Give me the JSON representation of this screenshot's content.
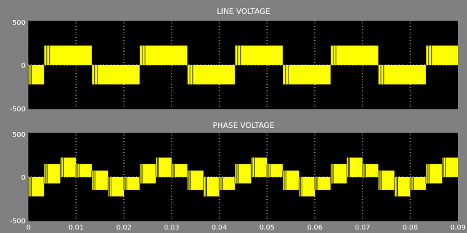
{
  "chart_data": [
    {
      "type": "line",
      "title": "LINE VOLTAGE",
      "ylim": [
        -500,
        500
      ],
      "xlim": [
        0,
        0.09
      ],
      "y_ticks": [
        {
          "value": 500,
          "label": "500"
        },
        {
          "value": 0,
          "label": "0"
        },
        {
          "value": -500,
          "label": "-500"
        }
      ],
      "x_ticks": [
        {
          "value": 0.01,
          "label": ""
        },
        {
          "value": 0.02,
          "label": ""
        },
        {
          "value": 0.03,
          "label": ""
        },
        {
          "value": 0.04,
          "label": ""
        },
        {
          "value": 0.05,
          "label": ""
        },
        {
          "value": 0.06,
          "label": ""
        },
        {
          "value": 0.07,
          "label": ""
        },
        {
          "value": 0.08,
          "label": ""
        }
      ],
      "grid": true,
      "series": [
        {
          "color": "#ffff00",
          "waveform": "square",
          "period": 0.02,
          "peak": 220,
          "segments": [
            {
              "x0": 0.0,
              "x1": 0.0033,
              "lo": -220,
              "hi": 0
            },
            {
              "x0": 0.0033,
              "x1": 0.0133,
              "lo": 0,
              "hi": 220
            },
            {
              "x0": 0.0133,
              "x1": 0.0233,
              "lo": -220,
              "hi": 0
            },
            {
              "x0": 0.0233,
              "x1": 0.0333,
              "lo": 0,
              "hi": 220
            },
            {
              "x0": 0.0333,
              "x1": 0.0433,
              "lo": -220,
              "hi": 0
            },
            {
              "x0": 0.0433,
              "x1": 0.0533,
              "lo": 0,
              "hi": 220
            },
            {
              "x0": 0.0533,
              "x1": 0.0633,
              "lo": -220,
              "hi": 0
            },
            {
              "x0": 0.0633,
              "x1": 0.0733,
              "lo": 0,
              "hi": 220
            },
            {
              "x0": 0.0733,
              "x1": 0.0833,
              "lo": -220,
              "hi": 0
            },
            {
              "x0": 0.0833,
              "x1": 0.09,
              "lo": 0,
              "hi": 220
            }
          ]
        }
      ]
    },
    {
      "type": "line",
      "title": "PHASE VOLTAGE",
      "ylim": [
        -500,
        500
      ],
      "xlim": [
        0,
        0.09
      ],
      "y_ticks": [
        {
          "value": 500,
          "label": "500"
        },
        {
          "value": 0,
          "label": "0"
        },
        {
          "value": -500,
          "label": "-500"
        }
      ],
      "x_ticks": [
        {
          "value": 0,
          "label": "0"
        },
        {
          "value": 0.01,
          "label": "0.01"
        },
        {
          "value": 0.02,
          "label": "0.02"
        },
        {
          "value": 0.03,
          "label": "0.03"
        },
        {
          "value": 0.04,
          "label": "0.04"
        },
        {
          "value": 0.05,
          "label": "0.05"
        },
        {
          "value": 0.06,
          "label": "0.06"
        },
        {
          "value": 0.07,
          "label": "0.07"
        },
        {
          "value": 0.08,
          "label": "0.08"
        },
        {
          "value": 0.09,
          "label": "0.09"
        }
      ],
      "grid": true,
      "series": [
        {
          "color": "#ffff00",
          "waveform": "six-step",
          "period": 0.02,
          "levels": [
            147,
            73,
            -73,
            -147
          ],
          "segments": [
            {
              "x0": 0.0,
              "x1": 0.0033,
              "lo": -220,
              "hi": 0
            },
            {
              "x0": 0.0033,
              "x1": 0.0067,
              "lo": -73,
              "hi": 147
            },
            {
              "x0": 0.0067,
              "x1": 0.01,
              "lo": 0,
              "hi": 220
            },
            {
              "x0": 0.01,
              "x1": 0.0133,
              "lo": 0,
              "hi": 147
            },
            {
              "x0": 0.0133,
              "x1": 0.0167,
              "lo": -147,
              "hi": 73
            },
            {
              "x0": 0.0167,
              "x1": 0.02,
              "lo": -220,
              "hi": 0
            },
            {
              "x0": 0.02,
              "x1": 0.0233,
              "lo": -147,
              "hi": 0
            },
            {
              "x0": 0.0233,
              "x1": 0.0267,
              "lo": -73,
              "hi": 147
            },
            {
              "x0": 0.0267,
              "x1": 0.03,
              "lo": 0,
              "hi": 220
            },
            {
              "x0": 0.03,
              "x1": 0.0333,
              "lo": 0,
              "hi": 147
            },
            {
              "x0": 0.0333,
              "x1": 0.0367,
              "lo": -147,
              "hi": 73
            },
            {
              "x0": 0.0367,
              "x1": 0.04,
              "lo": -220,
              "hi": 0
            },
            {
              "x0": 0.04,
              "x1": 0.0433,
              "lo": -147,
              "hi": 0
            },
            {
              "x0": 0.0433,
              "x1": 0.0467,
              "lo": -73,
              "hi": 147
            },
            {
              "x0": 0.0467,
              "x1": 0.05,
              "lo": 0,
              "hi": 220
            },
            {
              "x0": 0.05,
              "x1": 0.0533,
              "lo": 0,
              "hi": 147
            },
            {
              "x0": 0.0533,
              "x1": 0.0567,
              "lo": -147,
              "hi": 73
            },
            {
              "x0": 0.0567,
              "x1": 0.06,
              "lo": -220,
              "hi": 0
            },
            {
              "x0": 0.06,
              "x1": 0.0633,
              "lo": -147,
              "hi": 0
            },
            {
              "x0": 0.0633,
              "x1": 0.0667,
              "lo": -73,
              "hi": 147
            },
            {
              "x0": 0.0667,
              "x1": 0.07,
              "lo": 0,
              "hi": 220
            },
            {
              "x0": 0.07,
              "x1": 0.0733,
              "lo": 0,
              "hi": 147
            },
            {
              "x0": 0.0733,
              "x1": 0.0767,
              "lo": -147,
              "hi": 73
            },
            {
              "x0": 0.0767,
              "x1": 0.08,
              "lo": -220,
              "hi": 0
            },
            {
              "x0": 0.08,
              "x1": 0.0833,
              "lo": -147,
              "hi": 0
            },
            {
              "x0": 0.0833,
              "x1": 0.0867,
              "lo": -73,
              "hi": 147
            },
            {
              "x0": 0.0867,
              "x1": 0.09,
              "lo": 0,
              "hi": 220
            }
          ]
        }
      ]
    }
  ]
}
